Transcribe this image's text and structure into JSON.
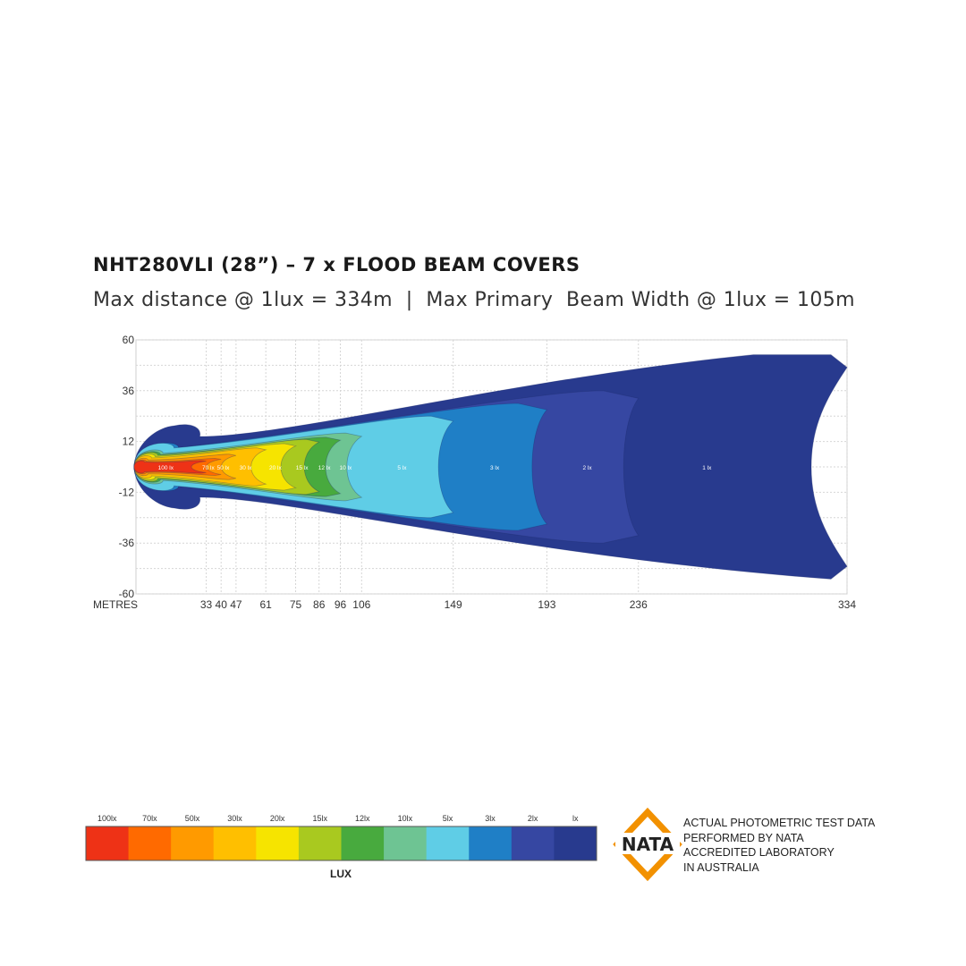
{
  "title": "NHT280VLI (28”) – 7 x FLOOD BEAM COVERS",
  "subtitle": "Max distance @ 1lux = 334m  |  Max Primary  Beam Width @ 1lux = 105m",
  "chart_data": {
    "type": "heatmap",
    "xlabel": "METRES",
    "x_ticks": [
      33,
      40,
      47,
      61,
      75,
      86,
      96,
      106,
      149,
      193,
      236,
      334
    ],
    "y_ticks": [
      60,
      36,
      12,
      -12,
      -36,
      -60
    ],
    "xlim": [
      0,
      334
    ],
    "ylim": [
      -60,
      60
    ],
    "grid": true,
    "max_distance_m": 334,
    "max_beam_width_m": 105,
    "zones": [
      {
        "label": "1 lx",
        "lux": 1,
        "reach": 334,
        "half_width": 53,
        "color": "#283a8e"
      },
      {
        "label": "2 lx",
        "lux": 2,
        "reach": 236,
        "half_width": 36,
        "color": "#3647a2"
      },
      {
        "label": "3 lx",
        "lux": 3,
        "reach": 193,
        "half_width": 30,
        "color": "#1f7fc6"
      },
      {
        "label": "5 lx",
        "lux": 5,
        "reach": 149,
        "half_width": 24,
        "color": "#5fcde6"
      },
      {
        "label": "10 lx",
        "lux": 10,
        "reach": 106,
        "half_width": 16,
        "color": "#6ec493"
      },
      {
        "label": "12 lx",
        "lux": 12,
        "reach": 96,
        "half_width": 14,
        "color": "#48aa3e"
      },
      {
        "label": "15 lx",
        "lux": 15,
        "reach": 86,
        "half_width": 13,
        "color": "#a9c91f"
      },
      {
        "label": "20 lx",
        "lux": 20,
        "reach": 75,
        "half_width": 11,
        "color": "#f6e400"
      },
      {
        "label": "30 lx",
        "lux": 30,
        "reach": 61,
        "half_width": 9,
        "color": "#ffbf00"
      },
      {
        "label": "50 lx",
        "lux": 50,
        "reach": 47,
        "half_width": 6,
        "color": "#ff9a00"
      },
      {
        "label": "70 lx",
        "lux": 70,
        "reach": 40,
        "half_width": 4,
        "color": "#ff6a00"
      },
      {
        "label": "100 lx",
        "lux": 100,
        "reach": 33,
        "half_width": 3,
        "color": "#ee3216"
      }
    ]
  },
  "legend": {
    "unit_label": "LUX",
    "items": [
      {
        "label": "100lx",
        "color": "#ee3216"
      },
      {
        "label": "70lx",
        "color": "#ff6a00"
      },
      {
        "label": "50lx",
        "color": "#ff9a00"
      },
      {
        "label": "30lx",
        "color": "#ffbf00"
      },
      {
        "label": "20lx",
        "color": "#f6e400"
      },
      {
        "label": "15lx",
        "color": "#a9c91f"
      },
      {
        "label": "12lx",
        "color": "#48aa3e"
      },
      {
        "label": "10lx",
        "color": "#6ec493"
      },
      {
        "label": "5lx",
        "color": "#5fcde6"
      },
      {
        "label": "3lx",
        "color": "#1f7fc6"
      },
      {
        "label": "2lx",
        "color": "#3647a2"
      },
      {
        "label": "lx",
        "color": "#283a8e"
      }
    ]
  },
  "nata": {
    "logo_text": "NATA",
    "logo_color": "#f29100",
    "lines": [
      "ACTUAL PHOTOMETRIC TEST DATA",
      "PERFORMED BY NATA",
      "ACCREDITED LABORATORY",
      "IN AUSTRALIA"
    ]
  }
}
